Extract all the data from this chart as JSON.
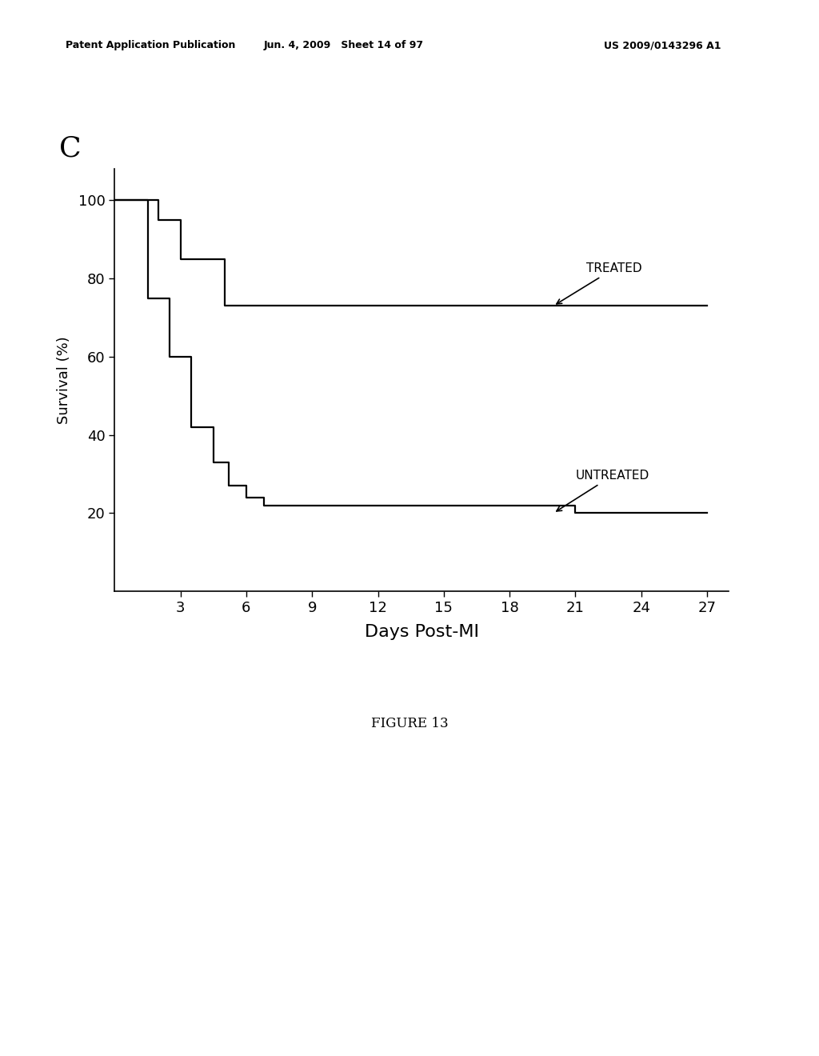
{
  "background_color": "#ffffff",
  "panel_label": "C",
  "panel_label_fontsize": 26,
  "xlabel": "Days Post-MI",
  "ylabel": "Survival (%)",
  "xlabel_fontsize": 16,
  "ylabel_fontsize": 13,
  "xlim": [
    0,
    28
  ],
  "ylim": [
    0,
    108
  ],
  "xticks": [
    3,
    6,
    9,
    12,
    15,
    18,
    21,
    24,
    27
  ],
  "yticks": [
    20,
    40,
    60,
    80,
    100
  ],
  "tick_fontsize": 13,
  "treated_x": [
    0,
    2,
    2,
    3,
    3,
    5,
    5,
    6.5,
    6.5,
    27
  ],
  "treated_y": [
    100,
    100,
    95,
    95,
    85,
    85,
    73,
    73,
    73,
    73
  ],
  "untreated_x": [
    0,
    1.5,
    1.5,
    2.5,
    2.5,
    3.5,
    3.5,
    4.5,
    4.5,
    5.2,
    5.2,
    6.0,
    6.0,
    6.8,
    6.8,
    21.0,
    21.0,
    27
  ],
  "untreated_y": [
    100,
    100,
    75,
    75,
    60,
    60,
    42,
    42,
    33,
    33,
    27,
    27,
    24,
    24,
    22,
    22,
    20,
    20
  ],
  "line_color": "#000000",
  "line_width": 1.6,
  "treated_label": "TREATED",
  "untreated_label": "UNTREATED",
  "label_fontsize": 11,
  "header_left": "Patent Application Publication",
  "header_mid": "Jun. 4, 2009   Sheet 14 of 97",
  "header_right": "US 2009/0143296 A1",
  "header_fontsize": 9,
  "figure_label": "FIGURE 13",
  "figure_label_fontsize": 12
}
